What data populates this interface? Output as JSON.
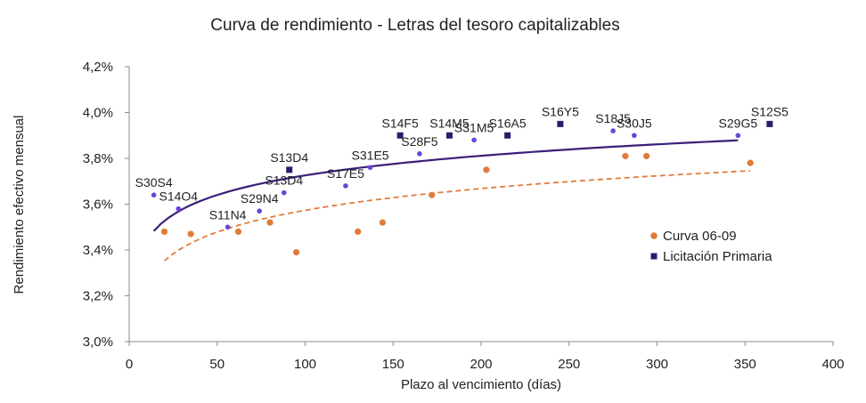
{
  "colors": {
    "orange": "#e07b39",
    "purple_point": "#6a45d9",
    "purple_square": "#2d1b69",
    "trend_purple": "#3b1f7a",
    "axis": "#8c8c8c"
  },
  "chart_data": {
    "type": "scatter",
    "title": "Curva de rendimiento  - Letras del tesoro capitalizables",
    "xlabel": "Plazo al vencimiento (días)",
    "ylabel": "Rendimiento efectivo mensual",
    "xlim": [
      0,
      400
    ],
    "ylim": [
      3.0,
      4.2
    ],
    "x_ticks": [
      "0",
      "50",
      "100",
      "150",
      "200",
      "250",
      "300",
      "350",
      "400"
    ],
    "y_ticks": [
      "3,0%",
      "3,2%",
      "3,4%",
      "3,6%",
      "3,8%",
      "4,0%",
      "4,2%"
    ],
    "legend_position": "right",
    "series": [
      {
        "name": "Curva 06-09",
        "marker": "circle",
        "color": "#e07b39",
        "points": [
          {
            "x": 20,
            "y": 3.48
          },
          {
            "x": 35,
            "y": 3.47
          },
          {
            "x": 62,
            "y": 3.48
          },
          {
            "x": 80,
            "y": 3.52
          },
          {
            "x": 95,
            "y": 3.39
          },
          {
            "x": 130,
            "y": 3.48
          },
          {
            "x": 144,
            "y": 3.52
          },
          {
            "x": 172,
            "y": 3.64
          },
          {
            "x": 203,
            "y": 3.75
          },
          {
            "x": 282,
            "y": 3.81
          },
          {
            "x": 294,
            "y": 3.81
          },
          {
            "x": 353,
            "y": 3.78
          }
        ],
        "trendline": "log",
        "trend_style": "dashed"
      },
      {
        "name": "",
        "marker": "small-circle",
        "color": "#6a45d9",
        "points": [
          {
            "x": 14,
            "y": 3.64,
            "label": "S30S4"
          },
          {
            "x": 28,
            "y": 3.58,
            "label": "S14O4"
          },
          {
            "x": 56,
            "y": 3.5,
            "label": "S11N4"
          },
          {
            "x": 74,
            "y": 3.57,
            "label": "S29N4"
          },
          {
            "x": 88,
            "y": 3.65,
            "label": "S13D4"
          },
          {
            "x": 123,
            "y": 3.68,
            "label": "S17E5"
          },
          {
            "x": 137,
            "y": 3.76,
            "label": "S31E5"
          },
          {
            "x": 165,
            "y": 3.82,
            "label": "S28F5"
          },
          {
            "x": 196,
            "y": 3.88,
            "label": "S31M5"
          },
          {
            "x": 275,
            "y": 3.92,
            "label": "S18J5"
          },
          {
            "x": 287,
            "y": 3.9,
            "label": "S30J5"
          },
          {
            "x": 346,
            "y": 3.9,
            "label": "S29G5"
          }
        ],
        "trendline": "log",
        "trend_style": "solid"
      },
      {
        "name": "Licitación Primaria",
        "marker": "square",
        "color": "#2d1b69",
        "points": [
          {
            "x": 91,
            "y": 3.75,
            "label": "S13D4"
          },
          {
            "x": 154,
            "y": 3.9,
            "label": "S14F5"
          },
          {
            "x": 182,
            "y": 3.9,
            "label": "S14M5"
          },
          {
            "x": 215,
            "y": 3.9,
            "label": "S16A5"
          },
          {
            "x": 245,
            "y": 3.95,
            "label": "S16Y5"
          },
          {
            "x": 364,
            "y": 3.95,
            "label": "S12S5"
          }
        ]
      }
    ]
  }
}
